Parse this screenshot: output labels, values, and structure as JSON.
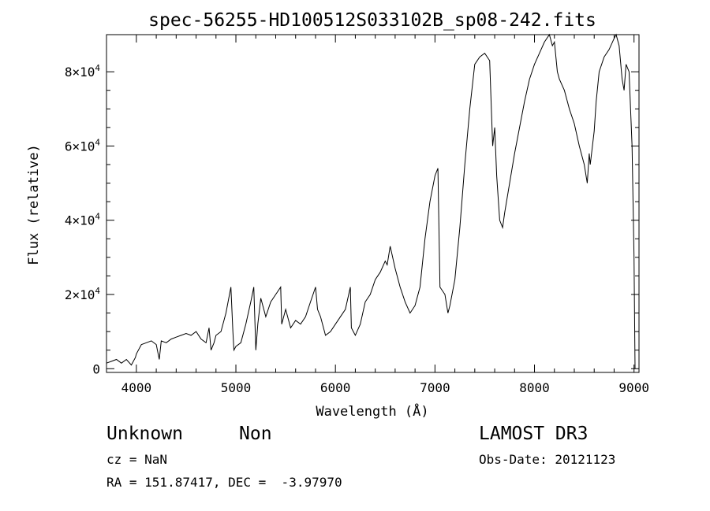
{
  "chart_data": {
    "type": "line",
    "title": "spec-56255-HD100512S033102B_sp08-242.fits",
    "xlabel": "Wavelength (Å)",
    "ylabel": "Flux (relative)",
    "xlim": [
      3700,
      9050
    ],
    "ylim": [
      -1000,
      90000
    ],
    "x_ticks": [
      4000,
      5000,
      6000,
      7000,
      8000,
      9000
    ],
    "y_ticks": [
      0,
      20000,
      40000,
      60000,
      80000
    ],
    "y_tick_labels": [
      {
        "mantissa": "0",
        "exp": ""
      },
      {
        "mantissa": "2×10",
        "exp": "4"
      },
      {
        "mantissa": "4×10",
        "exp": "4"
      },
      {
        "mantissa": "6×10",
        "exp": "4"
      },
      {
        "mantissa": "8×10",
        "exp": "4"
      }
    ],
    "grid": false,
    "series": [
      {
        "x": [
          3700,
          3750,
          3800,
          3850,
          3900,
          3950,
          3990,
          4000,
          4050,
          4100,
          4150,
          4200,
          4230,
          4250,
          4300,
          4350,
          4400,
          4450,
          4500,
          4550,
          4600,
          4650,
          4700,
          4730,
          4750,
          4780,
          4800,
          4850,
          4900,
          4950,
          4970,
          4980,
          5000,
          5050,
          5100,
          5150,
          5180,
          5200,
          5220,
          5250,
          5300,
          5350,
          5400,
          5450,
          5460,
          5500,
          5550,
          5600,
          5650,
          5700,
          5750,
          5800,
          5820,
          5850,
          5900,
          5950,
          6000,
          6050,
          6100,
          6150,
          6160,
          6200,
          6250,
          6300,
          6350,
          6400,
          6450,
          6500,
          6520,
          6550,
          6600,
          6650,
          6700,
          6750,
          6800,
          6850,
          6900,
          6950,
          7000,
          7030,
          7050,
          7100,
          7130,
          7150,
          7200,
          7250,
          7300,
          7350,
          7400,
          7450,
          7500,
          7550,
          7580,
          7600,
          7620,
          7650,
          7680,
          7700,
          7750,
          7800,
          7850,
          7900,
          7950,
          8000,
          8050,
          8100,
          8150,
          8180,
          8200,
          8230,
          8250,
          8300,
          8350,
          8400,
          8450,
          8500,
          8530,
          8550,
          8560,
          8600,
          8620,
          8650,
          8700,
          8750,
          8800,
          8820,
          8850,
          8880,
          8900,
          8920,
          8950,
          8980,
          9000,
          9010
        ],
        "y": [
          1500,
          2000,
          2500,
          1500,
          2500,
          1000,
          3000,
          4000,
          6500,
          7000,
          7500,
          6500,
          2500,
          7500,
          7000,
          8000,
          8500,
          9000,
          9500,
          9000,
          10000,
          8000,
          7000,
          11000,
          5000,
          7000,
          9000,
          10000,
          15000,
          22000,
          10000,
          5000,
          6000,
          7000,
          12000,
          18000,
          22000,
          5000,
          12000,
          19000,
          14000,
          18000,
          20000,
          22000,
          12000,
          16000,
          11000,
          13000,
          12000,
          14000,
          18000,
          22000,
          16000,
          14000,
          9000,
          10000,
          12000,
          14000,
          16000,
          22000,
          11000,
          9000,
          12000,
          18000,
          20000,
          24000,
          26000,
          29000,
          28000,
          33000,
          27000,
          22000,
          18000,
          15000,
          17000,
          22000,
          35000,
          45000,
          52000,
          54000,
          22000,
          20000,
          15000,
          17000,
          24000,
          38000,
          55000,
          70000,
          82000,
          84000,
          85000,
          83000,
          60000,
          65000,
          52000,
          40000,
          38000,
          42000,
          50000,
          58000,
          65000,
          72000,
          78000,
          82000,
          85000,
          88000,
          90000,
          87000,
          88000,
          80000,
          78000,
          75000,
          70000,
          66000,
          60000,
          55000,
          50000,
          58000,
          55000,
          64000,
          72000,
          80000,
          84000,
          86000,
          89000,
          90000,
          87000,
          78000,
          75000,
          82000,
          80000,
          60000,
          30000,
          0
        ]
      }
    ]
  },
  "info": {
    "obj_class": "Unknown",
    "obj_subclass": "Non",
    "survey": "LAMOST DR3",
    "cz": "cz = NaN",
    "obs_date": "Obs-Date: 20121123",
    "radec": "RA = 151.87417, DEC =  -3.97970"
  }
}
